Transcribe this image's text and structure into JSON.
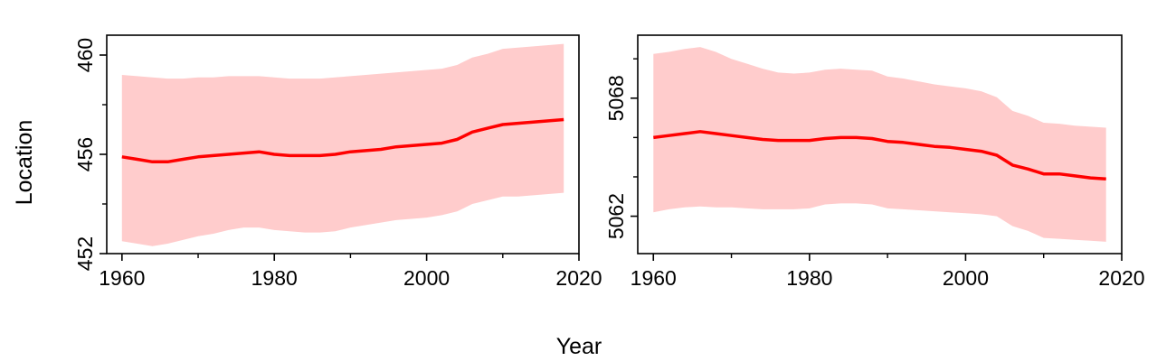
{
  "figure": {
    "xlabel": "Year",
    "ylabel": "Location"
  },
  "colors": {
    "line": "#ff0000",
    "band": "#ffcccc",
    "axis": "#000000"
  },
  "chart_data": [
    {
      "type": "line",
      "xlabel": "Year",
      "ylabel": "Location",
      "xlim": [
        1958,
        2020
      ],
      "ylim": [
        452,
        460.8
      ],
      "x_ticks": [
        1960,
        1980,
        2000,
        2020
      ],
      "x_ticklabels": [
        "1960",
        "1980",
        "2000",
        "2020"
      ],
      "x_minor_ticks": [
        1970,
        1990,
        2010
      ],
      "y_ticks": [
        452,
        456,
        460
      ],
      "y_ticklabels": [
        "452",
        "456",
        "460"
      ],
      "y_minor_ticks": [
        454,
        458
      ],
      "grid": false,
      "series": [
        {
          "x": [
            1960,
            1962,
            1964,
            1966,
            1968,
            1970,
            1972,
            1974,
            1976,
            1978,
            1980,
            1982,
            1984,
            1986,
            1988,
            1990,
            1992,
            1994,
            1996,
            1998,
            2000,
            2002,
            2004,
            2006,
            2008,
            2010,
            2012,
            2014,
            2016,
            2018
          ],
          "y": [
            455.9,
            455.8,
            455.7,
            455.7,
            455.8,
            455.9,
            455.95,
            456.0,
            456.05,
            456.1,
            456.0,
            455.95,
            455.95,
            455.95,
            456.0,
            456.1,
            456.15,
            456.2,
            456.3,
            456.35,
            456.4,
            456.45,
            456.6,
            456.9,
            457.05,
            457.2,
            457.25,
            457.3,
            457.35,
            457.4
          ],
          "lower": [
            452.5,
            452.4,
            452.3,
            452.4,
            452.55,
            452.7,
            452.8,
            452.95,
            453.05,
            453.05,
            452.95,
            452.9,
            452.85,
            452.85,
            452.9,
            453.05,
            453.15,
            453.25,
            453.35,
            453.4,
            453.45,
            453.55,
            453.7,
            454.0,
            454.15,
            454.3,
            454.3,
            454.35,
            454.4,
            454.45
          ],
          "upper": [
            459.2,
            459.15,
            459.1,
            459.05,
            459.05,
            459.1,
            459.1,
            459.15,
            459.15,
            459.15,
            459.1,
            459.05,
            459.05,
            459.05,
            459.1,
            459.15,
            459.2,
            459.25,
            459.3,
            459.35,
            459.4,
            459.45,
            459.6,
            459.9,
            460.05,
            460.25,
            460.3,
            460.35,
            460.4,
            460.45
          ]
        }
      ]
    },
    {
      "type": "line",
      "xlabel": "Year",
      "ylabel": "Location",
      "xlim": [
        1958,
        2020
      ],
      "ylim": [
        5060.1,
        5071.2
      ],
      "x_ticks": [
        1960,
        1980,
        2000,
        2020
      ],
      "x_ticklabels": [
        "1960",
        "1980",
        "2000",
        "2020"
      ],
      "x_minor_ticks": [
        1970,
        1990,
        2010
      ],
      "y_ticks": [
        5062,
        5068
      ],
      "y_ticklabels": [
        "5062",
        "5068"
      ],
      "y_minor_ticks": [
        5064,
        5066,
        5070
      ],
      "grid": false,
      "series": [
        {
          "x": [
            1960,
            1962,
            1964,
            1966,
            1968,
            1970,
            1972,
            1974,
            1976,
            1978,
            1980,
            1982,
            1984,
            1986,
            1988,
            1990,
            1992,
            1994,
            1996,
            1998,
            2000,
            2002,
            2004,
            2006,
            2008,
            2010,
            2012,
            2014,
            2016,
            2018
          ],
          "y": [
            5066.0,
            5066.1,
            5066.2,
            5066.3,
            5066.2,
            5066.1,
            5066.0,
            5065.9,
            5065.85,
            5065.85,
            5065.85,
            5065.95,
            5066.0,
            5066.0,
            5065.95,
            5065.8,
            5065.75,
            5065.65,
            5065.55,
            5065.5,
            5065.4,
            5065.3,
            5065.1,
            5064.6,
            5064.4,
            5064.15,
            5064.15,
            5064.05,
            5063.95,
            5063.9
          ],
          "lower": [
            5062.2,
            5062.35,
            5062.45,
            5062.5,
            5062.45,
            5062.45,
            5062.4,
            5062.35,
            5062.35,
            5062.35,
            5062.4,
            5062.6,
            5062.65,
            5062.65,
            5062.6,
            5062.4,
            5062.35,
            5062.3,
            5062.25,
            5062.2,
            5062.15,
            5062.1,
            5062.0,
            5061.5,
            5061.25,
            5060.9,
            5060.85,
            5060.8,
            5060.75,
            5060.7
          ],
          "upper": [
            5070.25,
            5070.35,
            5070.5,
            5070.6,
            5070.35,
            5070.0,
            5069.75,
            5069.5,
            5069.3,
            5069.25,
            5069.3,
            5069.45,
            5069.5,
            5069.45,
            5069.4,
            5069.1,
            5069.0,
            5068.85,
            5068.7,
            5068.6,
            5068.5,
            5068.35,
            5068.05,
            5067.35,
            5067.1,
            5066.75,
            5066.7,
            5066.6,
            5066.55,
            5066.5
          ]
        }
      ]
    }
  ]
}
